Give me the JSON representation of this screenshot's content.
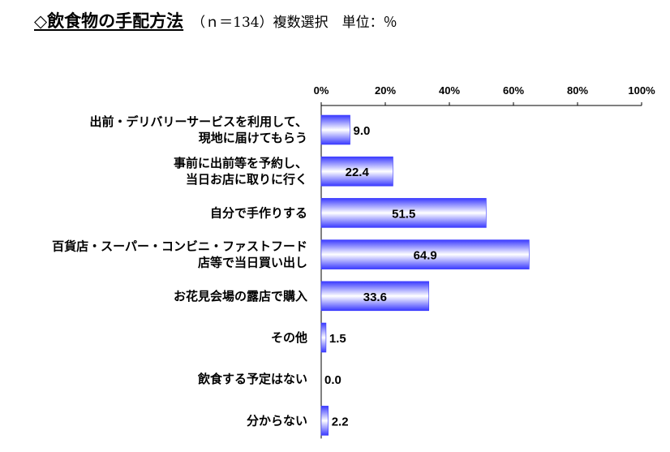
{
  "title": "◇飲食物の手配方法",
  "subtitle": "（ｎ＝134）複数選択　単位：％",
  "colors": {
    "bar_edge": "#3a3aff",
    "bar_mid": "#ffffff",
    "axis": "#000000"
  },
  "chart_data": {
    "type": "bar",
    "orientation": "horizontal",
    "categories": [
      [
        "出前・デリバリーサービスを利用して、",
        "現地に届けてもらう"
      ],
      [
        "事前に出前等を予約し、",
        "当日お店に取りに行く"
      ],
      [
        "自分で手作りする"
      ],
      [
        "百貨店・スーパー・コンビニ・ファストフード",
        "店等で当日買い出し"
      ],
      [
        "お花見会場の露店で購入"
      ],
      [
        "その他"
      ],
      [
        "飲食する予定はない"
      ],
      [
        "分からない"
      ]
    ],
    "values": [
      9.0,
      22.4,
      51.5,
      64.9,
      33.6,
      1.5,
      0.0,
      2.2
    ],
    "value_labels": [
      "9.0",
      "22.4",
      "51.5",
      "64.9",
      "33.6",
      "1.5",
      "0.0",
      "2.2"
    ],
    "xlim": [
      0,
      100
    ],
    "xticks": [
      "0%",
      "20%",
      "40%",
      "60%",
      "80%",
      "100%"
    ],
    "grid": false,
    "legend": "none"
  }
}
